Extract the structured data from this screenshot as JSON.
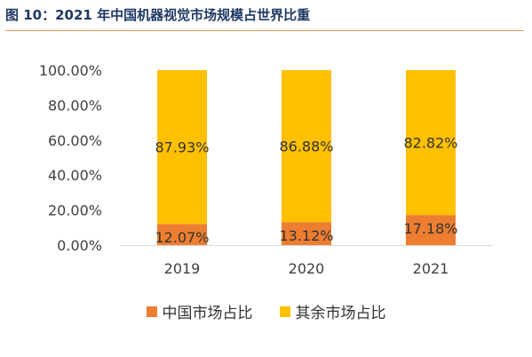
{
  "header": {
    "title": "图 10：2021 年中国机器视觉市场规模占世界比重"
  },
  "colors": {
    "china": "#ed7d31",
    "rest": "#ffc000",
    "accent": "#e2a25a",
    "title": "#1f3864"
  },
  "chart_data": {
    "type": "bar",
    "stacked": true,
    "categories": [
      "2019",
      "2020",
      "2021"
    ],
    "series": [
      {
        "name": "中国市场占比",
        "values": [
          12.07,
          13.12,
          17.18
        ],
        "labels": [
          "12.07%",
          "13.12%",
          "17.18%"
        ]
      },
      {
        "name": "其余市场占比",
        "values": [
          87.93,
          86.88,
          82.82
        ],
        "labels": [
          "87.93%",
          "86.88%",
          "82.82%"
        ]
      }
    ],
    "ylim": [
      0,
      100
    ],
    "yticks": [
      "0.00%",
      "20.00%",
      "40.00%",
      "60.00%",
      "80.00%",
      "100.00%"
    ],
    "grid": false,
    "legend_position": "bottom"
  }
}
